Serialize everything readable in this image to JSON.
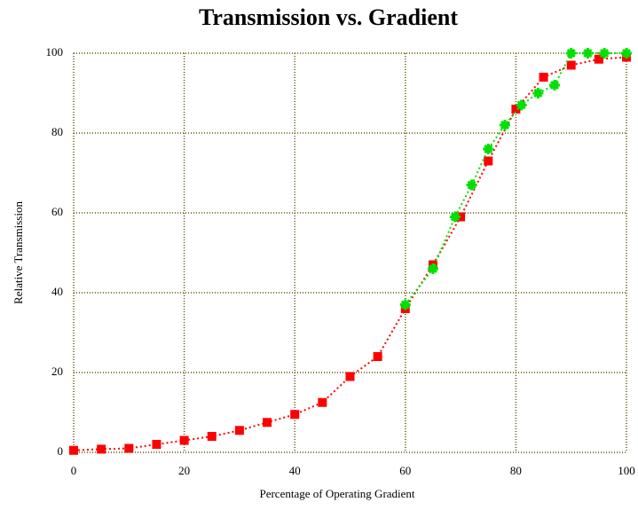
{
  "chart_data": {
    "type": "line",
    "title": "Transmission vs. Gradient",
    "x_label": "Percentage of Operating Gradient",
    "y_label": "Relative Transmission",
    "series": [
      {
        "color": "#ff0000",
        "marker": "square",
        "x": [
          0,
          5,
          10,
          15,
          20,
          25,
          30,
          35,
          40,
          45,
          50,
          55,
          60,
          65,
          70,
          75,
          80,
          85,
          90,
          95,
          100
        ],
        "values": [
          0.5,
          0.8,
          1,
          2,
          3,
          4,
          5.5,
          7.5,
          9.5,
          12.5,
          19,
          24,
          36,
          47,
          59,
          73,
          86,
          94,
          97,
          98.5,
          99
        ]
      },
      {
        "color": "#00e000",
        "marker": "star",
        "x": [
          60,
          65,
          69,
          72,
          75,
          78,
          81,
          84,
          87,
          90,
          93,
          96,
          100
        ],
        "values": [
          37,
          46,
          59,
          67,
          76,
          82,
          87,
          90,
          92,
          100,
          100,
          100,
          100
        ]
      }
    ],
    "xlim": [
      0,
      100
    ],
    "xticks": [
      0,
      20,
      40,
      60,
      80,
      100
    ],
    "ylim": [
      0,
      100
    ],
    "yticks": [
      0,
      20,
      40,
      60,
      80,
      100
    ],
    "grid": true
  }
}
